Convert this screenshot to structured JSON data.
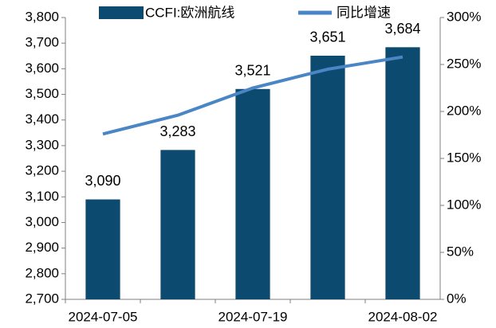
{
  "chart_data": {
    "type": "bar",
    "categories": [
      "2024-07-05",
      null,
      "2024-07-19",
      null,
      "2024-08-02"
    ],
    "series": [
      {
        "name": "CCFI:欧洲航线",
        "type": "bar",
        "color": "#0d4a6f",
        "values": [
          3090,
          3283,
          3521,
          3651,
          3684
        ],
        "value_labels": [
          "3,090",
          "3,283",
          "3,521",
          "3,651",
          "3,684"
        ]
      },
      {
        "name": "同比增速",
        "type": "line",
        "axis": "y2",
        "color": "#4a86c5",
        "values": [
          176,
          196,
          225,
          245,
          258
        ]
      }
    ],
    "ylim": [
      2700,
      3800
    ],
    "yticks": [
      {
        "value": 2700,
        "label": "2,700"
      },
      {
        "value": 2800,
        "label": "2,800"
      },
      {
        "value": 2900,
        "label": "2,900"
      },
      {
        "value": 3000,
        "label": "3,000"
      },
      {
        "value": 3100,
        "label": "3,100"
      },
      {
        "value": 3200,
        "label": "3,200"
      },
      {
        "value": 3300,
        "label": "3,300"
      },
      {
        "value": 3400,
        "label": "3,400"
      },
      {
        "value": 3500,
        "label": "3,500"
      },
      {
        "value": 3600,
        "label": "3,600"
      },
      {
        "value": 3700,
        "label": "3,700"
      },
      {
        "value": 3800,
        "label": "3,800"
      }
    ],
    "y2lim": [
      0,
      300
    ],
    "y2ticks": [
      {
        "value": 0,
        "label": "0%"
      },
      {
        "value": 50,
        "label": "50%"
      },
      {
        "value": 100,
        "label": "100%"
      },
      {
        "value": 150,
        "label": "150%"
      },
      {
        "value": 200,
        "label": "200%"
      },
      {
        "value": 250,
        "label": "250%"
      },
      {
        "value": 300,
        "label": "300%"
      }
    ],
    "legend": "top"
  }
}
